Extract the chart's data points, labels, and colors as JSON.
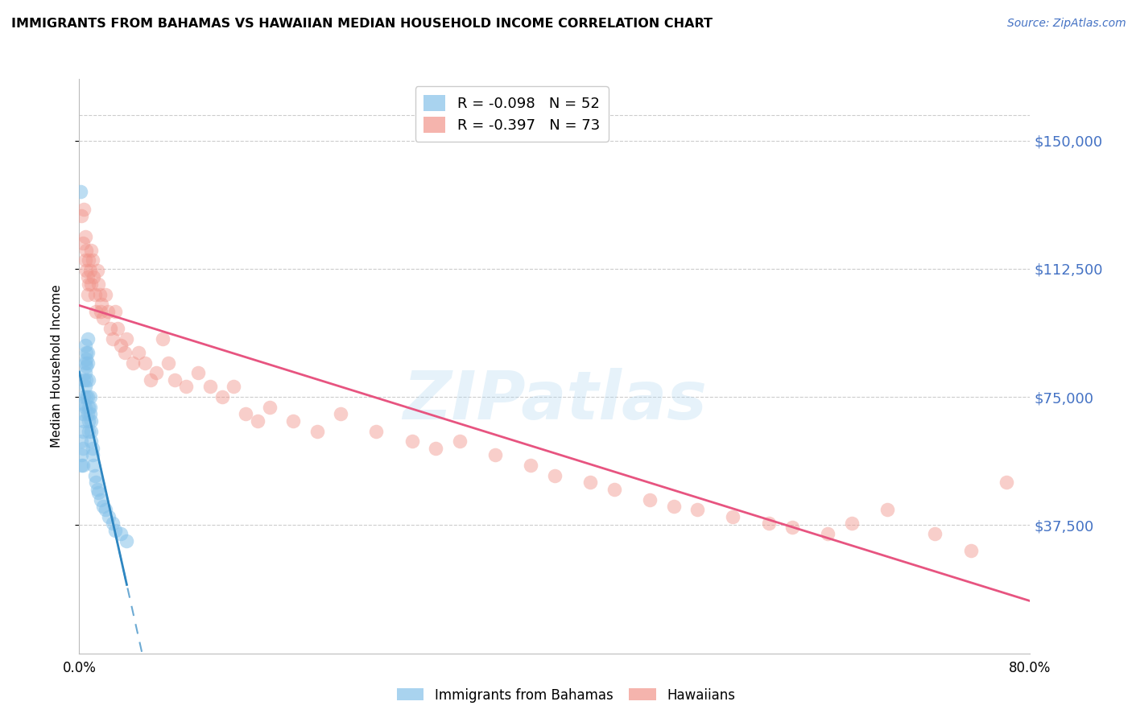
{
  "title": "IMMIGRANTS FROM BAHAMAS VS HAWAIIAN MEDIAN HOUSEHOLD INCOME CORRELATION CHART",
  "source": "Source: ZipAtlas.com",
  "ylabel": "Median Household Income",
  "ytick_labels": [
    "$37,500",
    "$75,000",
    "$112,500",
    "$150,000"
  ],
  "ytick_values": [
    37500,
    75000,
    112500,
    150000
  ],
  "ymin": 0,
  "ymax": 168000,
  "xmin": 0.0,
  "xmax": 0.8,
  "legend_r_bahamas": "R = -0.098",
  "legend_n_bahamas": "N = 52",
  "legend_r_hawaiians": "R = -0.397",
  "legend_n_hawaiians": "N = 73",
  "watermark": "ZIPatlas",
  "color_bahamas": "#85c1e9",
  "color_hawaiians": "#f1948a",
  "color_bahamas_line": "#2e86c1",
  "color_hawaiians_line": "#e75480",
  "color_ytick": "#4472c4",
  "background_color": "#ffffff",
  "grid_color": "#cccccc",
  "bahamas_x": [
    0.001,
    0.002,
    0.002,
    0.003,
    0.003,
    0.003,
    0.003,
    0.004,
    0.004,
    0.004,
    0.004,
    0.005,
    0.005,
    0.005,
    0.005,
    0.005,
    0.006,
    0.006,
    0.006,
    0.006,
    0.006,
    0.007,
    0.007,
    0.007,
    0.007,
    0.007,
    0.008,
    0.008,
    0.008,
    0.008,
    0.009,
    0.009,
    0.009,
    0.01,
    0.01,
    0.01,
    0.011,
    0.011,
    0.012,
    0.013,
    0.014,
    0.015,
    0.016,
    0.018,
    0.02,
    0.022,
    0.025,
    0.028,
    0.03,
    0.035,
    0.04,
    0.002
  ],
  "bahamas_y": [
    135000,
    58000,
    62000,
    65000,
    70000,
    55000,
    60000,
    75000,
    80000,
    73000,
    68000,
    85000,
    78000,
    82000,
    90000,
    72000,
    88000,
    84000,
    86000,
    80000,
    75000,
    92000,
    88000,
    85000,
    75000,
    70000,
    80000,
    65000,
    72000,
    68000,
    75000,
    72000,
    70000,
    65000,
    68000,
    62000,
    58000,
    60000,
    55000,
    52000,
    50000,
    48000,
    47000,
    45000,
    43000,
    42000,
    40000,
    38000,
    36000,
    35000,
    33000,
    55000
  ],
  "hawaiians_x": [
    0.002,
    0.003,
    0.004,
    0.005,
    0.005,
    0.006,
    0.006,
    0.007,
    0.007,
    0.008,
    0.008,
    0.009,
    0.01,
    0.01,
    0.011,
    0.012,
    0.013,
    0.014,
    0.015,
    0.016,
    0.017,
    0.018,
    0.019,
    0.02,
    0.022,
    0.024,
    0.026,
    0.028,
    0.03,
    0.032,
    0.035,
    0.038,
    0.04,
    0.045,
    0.05,
    0.055,
    0.06,
    0.065,
    0.07,
    0.075,
    0.08,
    0.09,
    0.1,
    0.11,
    0.12,
    0.13,
    0.14,
    0.15,
    0.16,
    0.18,
    0.2,
    0.22,
    0.25,
    0.28,
    0.3,
    0.32,
    0.35,
    0.38,
    0.4,
    0.43,
    0.45,
    0.48,
    0.5,
    0.52,
    0.55,
    0.58,
    0.6,
    0.63,
    0.65,
    0.68,
    0.72,
    0.75,
    0.78
  ],
  "hawaiians_y": [
    128000,
    120000,
    130000,
    122000,
    115000,
    118000,
    112000,
    105000,
    110000,
    108000,
    115000,
    112000,
    118000,
    108000,
    115000,
    110000,
    105000,
    100000,
    112000,
    108000,
    105000,
    100000,
    102000,
    98000,
    105000,
    100000,
    95000,
    92000,
    100000,
    95000,
    90000,
    88000,
    92000,
    85000,
    88000,
    85000,
    80000,
    82000,
    92000,
    85000,
    80000,
    78000,
    82000,
    78000,
    75000,
    78000,
    70000,
    68000,
    72000,
    68000,
    65000,
    70000,
    65000,
    62000,
    60000,
    62000,
    58000,
    55000,
    52000,
    50000,
    48000,
    45000,
    43000,
    42000,
    40000,
    38000,
    37000,
    35000,
    38000,
    42000,
    35000,
    30000,
    50000
  ]
}
